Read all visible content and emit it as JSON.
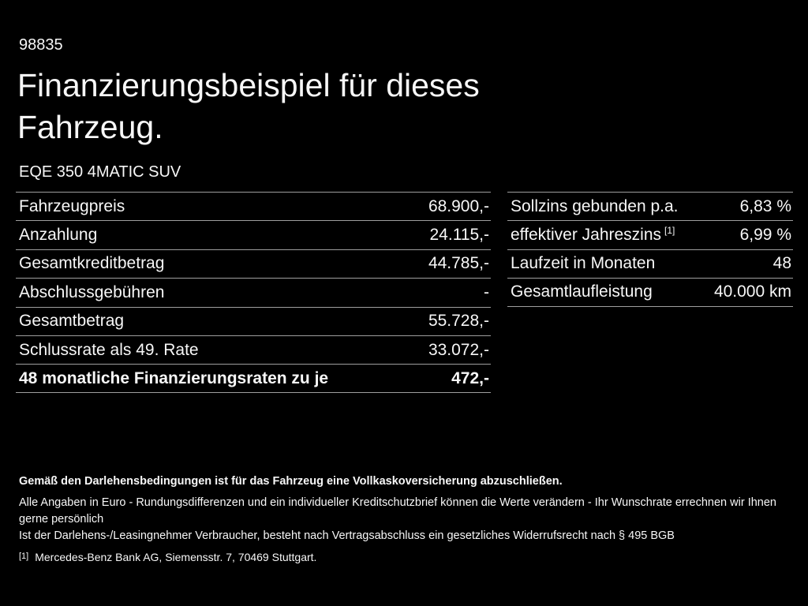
{
  "page": {
    "id_number": "98835",
    "title_line1": "Finanzierungsbeispiel für dieses",
    "title_line2": "Fahrzeug.",
    "vehicle_model": "EQE 350 4MATIC SUV"
  },
  "finance_table": {
    "rows": [
      {
        "label": "Fahrzeugpreis",
        "value": "68.900,-"
      },
      {
        "label": "Anzahlung",
        "value": "24.115,-"
      },
      {
        "label": "Gesamtkreditbetrag",
        "value": "44.785,-"
      },
      {
        "label": "Abschlussgebühren",
        "value": "-"
      },
      {
        "label": "Gesamtbetrag",
        "value": "55.728,-"
      },
      {
        "label": "Schlussrate als 49. Rate",
        "value": "33.072,-"
      },
      {
        "label": "48 monatliche Finanzierungsraten zu je",
        "value": "472,-"
      }
    ]
  },
  "conditions_table": {
    "rows": [
      {
        "label": "Sollzins gebunden p.a.",
        "sup": "",
        "value": "6,83 %"
      },
      {
        "label": "effektiver Jahreszins",
        "sup": "[1]",
        "value": "6,99 %"
      },
      {
        "label": "Laufzeit in Monaten",
        "sup": "",
        "value": "48"
      },
      {
        "label": "Gesamtlaufleistung",
        "sup": "",
        "value": "40.000 km"
      }
    ]
  },
  "disclaimer": {
    "bold_line": "Gemäß den Darlehensbedingungen ist für das Fahrzeug eine Vollkaskoversicherung abzuschließen.",
    "line2": "Alle Angaben in Euro - Rundungsdifferenzen und ein individueller Kreditschutzbrief können die Werte verändern - Ihr Wunschrate errechnen wir Ihnen gerne persönlich",
    "line3": "Ist der Darlehens-/Leasingnehmer Verbraucher, besteht nach Vertragsabschluss ein gesetzliches Widerrufsrecht nach § 495 BGB",
    "footnote_marker": "[1]",
    "footnote_text": "Mercedes-Benz Bank AG, Siemensstr. 7, 70469 Stuttgart."
  },
  "colors": {
    "background": "#000000",
    "text": "#f7f7f7",
    "divider": "#9e9e9e"
  }
}
